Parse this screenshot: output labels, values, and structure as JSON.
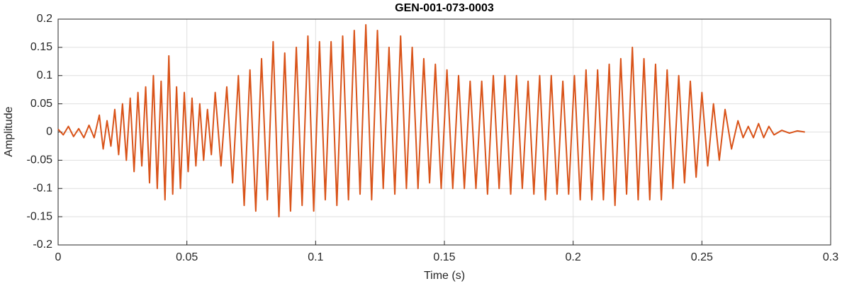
{
  "chart_data": {
    "type": "line",
    "title": "GEN-001-073-0003",
    "xlabel": "Time (s)",
    "ylabel": "Amplitude",
    "xlim": [
      0,
      0.3
    ],
    "xticks": [
      0,
      0.05,
      0.1,
      0.15,
      0.2,
      0.25,
      0.3
    ],
    "ylim": [
      -0.2,
      0.2
    ],
    "yticks": [
      -0.2,
      -0.15,
      -0.1,
      -0.05,
      0,
      0.05,
      0.1,
      0.15,
      0.2
    ],
    "grid": true,
    "series": [
      {
        "name": "Amplitude",
        "color": "#d95319",
        "x": [
          0,
          0.002,
          0.004,
          0.006,
          0.008,
          0.01,
          0.012,
          0.014,
          0.016,
          0.0175,
          0.019,
          0.0205,
          0.022,
          0.0235,
          0.025,
          0.0265,
          0.028,
          0.0295,
          0.031,
          0.0325,
          0.034,
          0.0355,
          0.037,
          0.0385,
          0.04,
          0.0415,
          0.043,
          0.0445,
          0.046,
          0.0475,
          0.049,
          0.0505,
          0.052,
          0.0535,
          0.055,
          0.0565,
          0.058,
          0.0595,
          0.061,
          0.06325,
          0.0655,
          0.06775,
          0.07,
          0.07225,
          0.0745,
          0.07675,
          0.079,
          0.08125,
          0.0835,
          0.08575,
          0.088,
          0.09025,
          0.0925,
          0.09475,
          0.097,
          0.09925,
          0.1015,
          0.10375,
          0.106,
          0.10825,
          0.1105,
          0.11275,
          0.115,
          0.11725,
          0.1195,
          0.12175,
          0.124,
          0.12625,
          0.1285,
          0.13075,
          0.133,
          0.13525,
          0.1375,
          0.13975,
          0.142,
          0.14425,
          0.1465,
          0.14875,
          0.151,
          0.15325,
          0.1555,
          0.15775,
          0.16,
          0.16225,
          0.1645,
          0.16675,
          0.169,
          0.17125,
          0.1735,
          0.17575,
          0.178,
          0.18025,
          0.1825,
          0.18475,
          0.187,
          0.18925,
          0.1915,
          0.19375,
          0.196,
          0.19825,
          0.2005,
          0.20275,
          0.205,
          0.20725,
          0.2095,
          0.21175,
          0.214,
          0.21625,
          0.2185,
          0.22075,
          0.223,
          0.22525,
          0.2275,
          0.22975,
          0.232,
          0.23425,
          0.2365,
          0.23875,
          0.241,
          0.24325,
          0.2455,
          0.24775,
          0.25,
          0.25225,
          0.2545,
          0.25675,
          0.259,
          0.2615,
          0.264,
          0.266,
          0.268,
          0.27,
          0.272,
          0.274,
          0.276,
          0.278,
          0.281,
          0.284,
          0.287,
          0.29
        ],
        "values": [
          0.005,
          -0.005,
          0.01,
          -0.008,
          0.006,
          -0.01,
          0.012,
          -0.01,
          0.03,
          -0.03,
          0.02,
          -0.025,
          0.04,
          -0.04,
          0.05,
          -0.05,
          0.06,
          -0.07,
          0.07,
          -0.06,
          0.08,
          -0.09,
          0.1,
          -0.1,
          0.09,
          -0.12,
          0.135,
          -0.11,
          0.08,
          -0.1,
          0.07,
          -0.07,
          0.06,
          -0.06,
          0.05,
          -0.05,
          0.04,
          -0.04,
          0.07,
          -0.06,
          0.08,
          -0.09,
          0.1,
          -0.13,
          0.11,
          -0.14,
          0.13,
          -0.12,
          0.16,
          -0.15,
          0.14,
          -0.14,
          0.15,
          -0.13,
          0.17,
          -0.14,
          0.16,
          -0.12,
          0.16,
          -0.13,
          0.17,
          -0.12,
          0.18,
          -0.11,
          0.19,
          -0.12,
          0.18,
          -0.1,
          0.15,
          -0.11,
          0.17,
          -0.1,
          0.15,
          -0.1,
          0.13,
          -0.09,
          0.12,
          -0.1,
          0.11,
          -0.1,
          0.1,
          -0.1,
          0.09,
          -0.1,
          0.09,
          -0.11,
          0.1,
          -0.1,
          0.1,
          -0.11,
          0.1,
          -0.1,
          0.09,
          -0.11,
          0.1,
          -0.12,
          0.1,
          -0.11,
          0.09,
          -0.11,
          0.1,
          -0.12,
          0.11,
          -0.12,
          0.11,
          -0.12,
          0.12,
          -0.13,
          0.13,
          -0.11,
          0.15,
          -0.12,
          0.13,
          -0.12,
          0.12,
          -0.12,
          0.11,
          -0.1,
          0.1,
          -0.09,
          0.09,
          -0.08,
          0.07,
          -0.06,
          0.05,
          -0.05,
          0.04,
          -0.03,
          0.02,
          -0.01,
          0.01,
          -0.01,
          0.015,
          -0.01,
          0.01,
          -0.005,
          0.003,
          -0.002,
          0.002,
          0
        ]
      }
    ]
  }
}
